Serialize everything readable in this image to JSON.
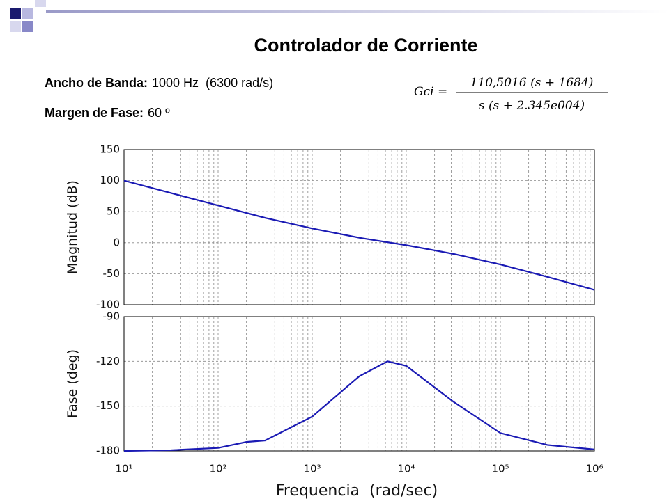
{
  "slide": {
    "title": "Controlador de Corriente",
    "bandwidth_label": "Ancho de Banda:",
    "bandwidth_value": "1000 Hz  (6300 rad/s)",
    "margin_label": "Margen de Fase:",
    "margin_value": "60 º",
    "formula": {
      "lhs": "Gci =",
      "numerator": "110,5016 (s + 1684)",
      "denominator": "s (s + 2.345e004)"
    }
  },
  "chart_data": [
    {
      "type": "line",
      "ylabel": "Magnitud (dB)",
      "xscale": "log",
      "grid": true,
      "xlim": [
        10,
        1000000
      ],
      "xticks": [
        10,
        100,
        1000,
        10000,
        100000,
        1000000
      ],
      "xminorticks": [
        20,
        30,
        40,
        50,
        60,
        70,
        80,
        90,
        200,
        300,
        400,
        500,
        600,
        700,
        800,
        900,
        2000,
        3000,
        4000,
        5000,
        6000,
        7000,
        8000,
        9000,
        20000,
        30000,
        40000,
        50000,
        60000,
        70000,
        80000,
        90000,
        200000,
        300000,
        400000,
        500000,
        600000,
        700000,
        800000,
        900000
      ],
      "ylim": [
        -100,
        150
      ],
      "yticks": [
        -100,
        -50,
        0,
        50,
        100,
        150
      ],
      "x": [
        10,
        31.62,
        100,
        316.2,
        1000,
        3162,
        10000,
        31620,
        100000,
        316200,
        1000000
      ],
      "series": [
        {
          "name": "Magnitud",
          "color": "#1a1ab4",
          "values": [
            100,
            80,
            60,
            40,
            23,
            8,
            -4,
            -18,
            -35,
            -55,
            -76
          ]
        }
      ]
    },
    {
      "type": "line",
      "ylabel": "Fase (deg)",
      "xlabel": "Frequencia  (rad/sec)",
      "xscale": "log",
      "grid": true,
      "xlim": [
        10,
        1000000
      ],
      "xticks": [
        {
          "value": 10,
          "label": "10¹"
        },
        {
          "value": 100,
          "label": "10²"
        },
        {
          "value": 1000,
          "label": "10³"
        },
        {
          "value": 10000,
          "label": "10⁴"
        },
        {
          "value": 100000,
          "label": "10⁵"
        },
        {
          "value": 1000000,
          "label": "10⁶"
        }
      ],
      "xminorticks": [
        20,
        30,
        40,
        50,
        60,
        70,
        80,
        90,
        200,
        300,
        400,
        500,
        600,
        700,
        800,
        900,
        2000,
        3000,
        4000,
        5000,
        6000,
        7000,
        8000,
        9000,
        20000,
        30000,
        40000,
        50000,
        60000,
        70000,
        80000,
        90000,
        200000,
        300000,
        400000,
        500000,
        600000,
        700000,
        800000,
        900000
      ],
      "ylim": [
        -180,
        -90
      ],
      "yticks": [
        -180,
        -150,
        -120,
        -90
      ],
      "x": [
        10,
        31.62,
        100,
        200,
        316.2,
        1000,
        3162,
        6310,
        10000,
        31620,
        100000,
        316200,
        1000000
      ],
      "series": [
        {
          "name": "Fase",
          "color": "#1a1ab4",
          "values": [
            -180,
            -179.5,
            -178,
            -174,
            -173,
            -157,
            -130,
            -120,
            -123,
            -147,
            -168,
            -176,
            -179
          ]
        }
      ]
    }
  ]
}
